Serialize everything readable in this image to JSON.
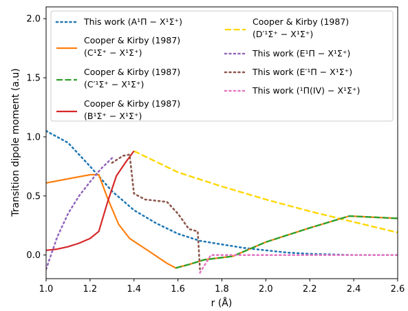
{
  "chart_data": {
    "type": "line",
    "xlabel": "r (Å)",
    "ylabel": "Transition dipole moment (a.u)",
    "xlim": [
      1.0,
      2.6
    ],
    "ylim": [
      -0.2,
      2.1
    ],
    "xticks": [
      "1.0",
      "1.2",
      "1.4",
      "1.6",
      "1.8",
      "2.0",
      "2.2",
      "2.4",
      "2.6"
    ],
    "yticks": [
      "0.0",
      "0.5",
      "1.0",
      "1.5",
      "2.0"
    ],
    "legend_position": "top",
    "series": [
      {
        "key": "A",
        "color": "#1f77b4",
        "dash": "dotted",
        "label_lines": [
          "This work (A¹Π − X¹Σ⁺)"
        ],
        "x": [
          1.0,
          1.1,
          1.2,
          1.3,
          1.4,
          1.5,
          1.6,
          1.7,
          1.8,
          1.9,
          2.0,
          2.1,
          2.2,
          2.4,
          2.6
        ],
        "y": [
          1.05,
          0.95,
          0.75,
          0.54,
          0.38,
          0.27,
          0.18,
          0.12,
          0.09,
          0.06,
          0.04,
          0.02,
          0.01,
          0.0,
          0.0
        ]
      },
      {
        "key": "D",
        "color": "#ffd700",
        "dash": "dashed",
        "label_lines": [
          "Cooper & Kirby (1987)",
          "(D′¹Σ⁺ − X¹Σ⁺)"
        ],
        "x": [
          1.4,
          1.6,
          1.8,
          2.0,
          2.2,
          2.4,
          2.6
        ],
        "y": [
          0.88,
          0.7,
          0.58,
          0.47,
          0.37,
          0.28,
          0.19
        ]
      },
      {
        "key": "C",
        "color": "#ff7f0e",
        "dash": "solid",
        "label_lines": [
          "Cooper & Kirby (1987)",
          "(C¹Σ⁺ − X¹Σ⁺)"
        ],
        "x": [
          1.0,
          1.2,
          1.24,
          1.28,
          1.33,
          1.38,
          1.47,
          1.55,
          1.59,
          1.65,
          1.72,
          1.85,
          2.0,
          2.2,
          2.38,
          2.6
        ],
        "y": [
          0.61,
          0.68,
          0.68,
          0.48,
          0.26,
          0.14,
          0.03,
          -0.07,
          -0.11,
          -0.08,
          -0.04,
          -0.01,
          0.11,
          0.23,
          0.33,
          0.31
        ]
      },
      {
        "key": "Cp",
        "color": "#2ca02c",
        "dash": "dashed",
        "label_lines": [
          "Cooper & Kirby (1987)",
          "(C′¹Σ⁺ − X¹Σ⁺)"
        ],
        "x": [
          1.59,
          1.65,
          1.72,
          1.85,
          2.0,
          2.2,
          2.38,
          2.6
        ],
        "y": [
          -0.11,
          -0.08,
          -0.04,
          -0.01,
          0.11,
          0.23,
          0.33,
          0.31
        ]
      },
      {
        "key": "B",
        "color": "#d62728",
        "dash": "solid",
        "label_lines": [
          "Cooper & Kirby (1987)",
          "(B¹Σ⁺ − X¹Σ⁺)"
        ],
        "x": [
          1.0,
          1.05,
          1.1,
          1.15,
          1.2,
          1.24,
          1.28,
          1.32,
          1.36,
          1.4
        ],
        "y": [
          0.04,
          0.05,
          0.07,
          0.1,
          0.14,
          0.2,
          0.45,
          0.67,
          0.78,
          0.88
        ]
      },
      {
        "key": "E",
        "color": "#9467bd",
        "dash": "dotted",
        "label_lines": [
          "This work (E¹Π − X¹Σ⁺)"
        ],
        "x": [
          1.0,
          1.05,
          1.1,
          1.15,
          1.2,
          1.25,
          1.3
        ],
        "y": [
          -0.12,
          0.15,
          0.35,
          0.5,
          0.62,
          0.73,
          0.82
        ]
      },
      {
        "key": "Ep",
        "color": "#8c564b",
        "dash": "dotted",
        "label_lines": [
          "This work (E′¹Π − X¹Σ⁺)"
        ],
        "x": [
          1.3,
          1.35,
          1.38,
          1.4,
          1.45,
          1.5,
          1.55,
          1.6,
          1.65,
          1.69,
          1.7
        ],
        "y": [
          0.78,
          0.84,
          0.85,
          0.52,
          0.47,
          0.46,
          0.45,
          0.35,
          0.22,
          0.2,
          -0.12
        ]
      },
      {
        "key": "IV",
        "color": "#e377c2",
        "dash": "dotted",
        "label_lines": [
          "This work (¹Π(IV) − X¹Σ⁺)"
        ],
        "x": [
          1.7,
          1.75,
          1.8,
          2.0,
          2.2,
          2.4,
          2.6
        ],
        "y": [
          -0.15,
          0.0,
          0.0,
          0.0,
          0.0,
          0.0,
          0.0
        ]
      }
    ],
    "legend_columns": [
      [
        "A",
        "C",
        "Cp",
        "B"
      ],
      [
        "D",
        "E",
        "Ep",
        "IV"
      ]
    ],
    "colors": {
      "A": "#1f77b4",
      "C": "#ff7f0e",
      "Cp": "#2ca02c",
      "B": "#d62728",
      "D": "#ffd700",
      "E": "#9467bd",
      "Ep": "#8c564b",
      "IV": "#e377c2"
    }
  }
}
